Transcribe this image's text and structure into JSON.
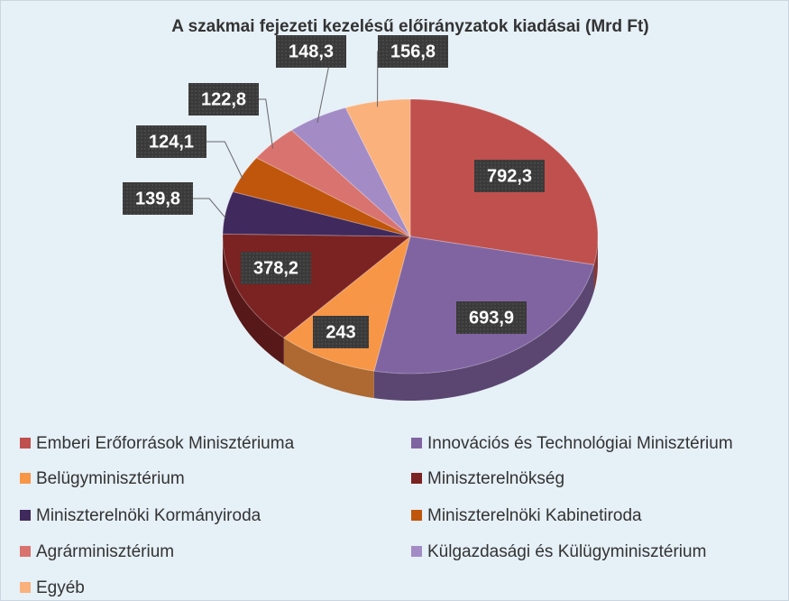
{
  "chart_data": {
    "type": "pie",
    "title": "A szakmai fejezeti kezelésű előirányzatok kiadásai (Mrd Ft)",
    "categories": [
      "Emberi Erőforrások Minisztériuma",
      "Innovációs és Technológiai Minisztérium",
      "Belügyminisztérium",
      "Miniszterelnökség",
      "Miniszterelnöki Kormányiroda",
      "Miniszterelnöki Kabinetiroda",
      "Agrárminisztérium",
      "Külgazdasági és Külügyminisztérium",
      "Egyéb"
    ],
    "values": [
      792.3,
      693.9,
      243,
      378.2,
      139.8,
      124.1,
      122.8,
      148.3,
      156.8
    ],
    "value_labels": [
      "792,3",
      "693,9",
      "243",
      "378,2",
      "139,8",
      "124,1",
      "122,8",
      "148,3",
      "156,8"
    ],
    "colors": [
      "#c0504d",
      "#8064a2",
      "#f79646",
      "#7b2222",
      "#40295c",
      "#c0560c",
      "#d9736f",
      "#a38bc6",
      "#fbb17c"
    ]
  }
}
